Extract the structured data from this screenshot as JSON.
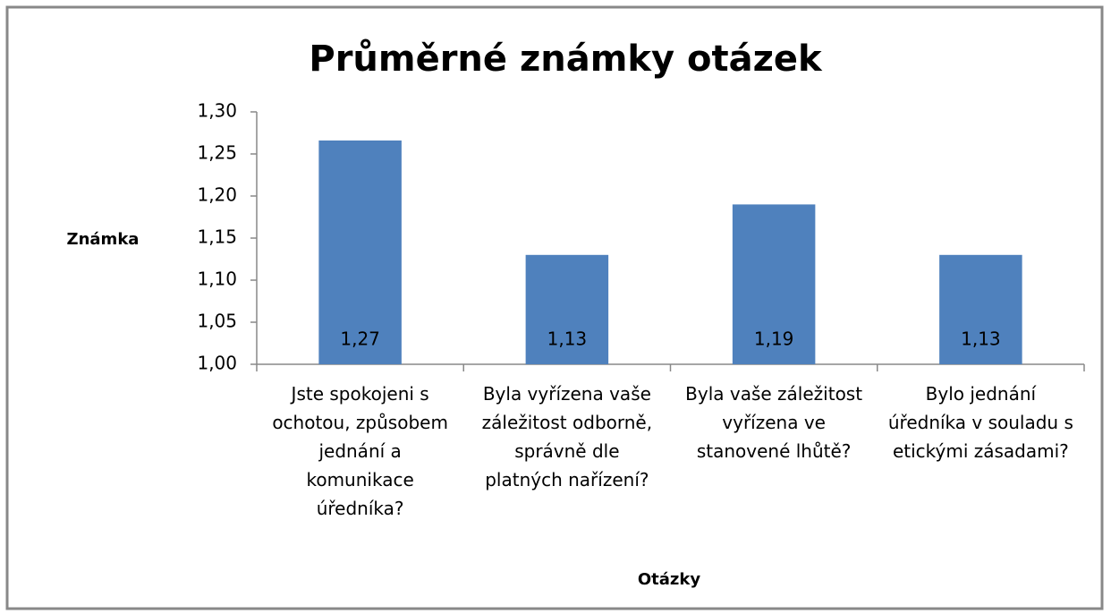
{
  "chart_data": {
    "type": "bar",
    "title": "Průměrné známky otázek",
    "x_label": "Otázky",
    "y_label": "Známka",
    "categories": [
      "Jste spokojeni s ochotou, způsobem jednání a komunikace úředníka?",
      "Byla vyřízena vaše záležitost odborně, správně dle platných nařízení?",
      "Byla vaše záležitost vyřízena ve stanovené lhůtě?",
      "Bylo jednání úředníka v souladu s etickými zásadami?"
    ],
    "values": [
      1.266,
      1.13,
      1.19,
      1.13
    ],
    "value_labels": [
      "1,27",
      "1,13",
      "1,19",
      "1,13"
    ],
    "color": "#4f81bd",
    "ylim": [
      1,
      1.3
    ],
    "yticks": [
      {
        "value": 1,
        "label": "1,00"
      },
      {
        "value": 1.05,
        "label": "1,05"
      },
      {
        "value": 1.1,
        "label": "1,10"
      },
      {
        "value": 1.15,
        "label": "1,15"
      },
      {
        "value": 1.2,
        "label": "1,20"
      },
      {
        "value": 1.25,
        "label": "1,25"
      },
      {
        "value": 1.3,
        "label": "1,30"
      }
    ],
    "grid": false
  }
}
